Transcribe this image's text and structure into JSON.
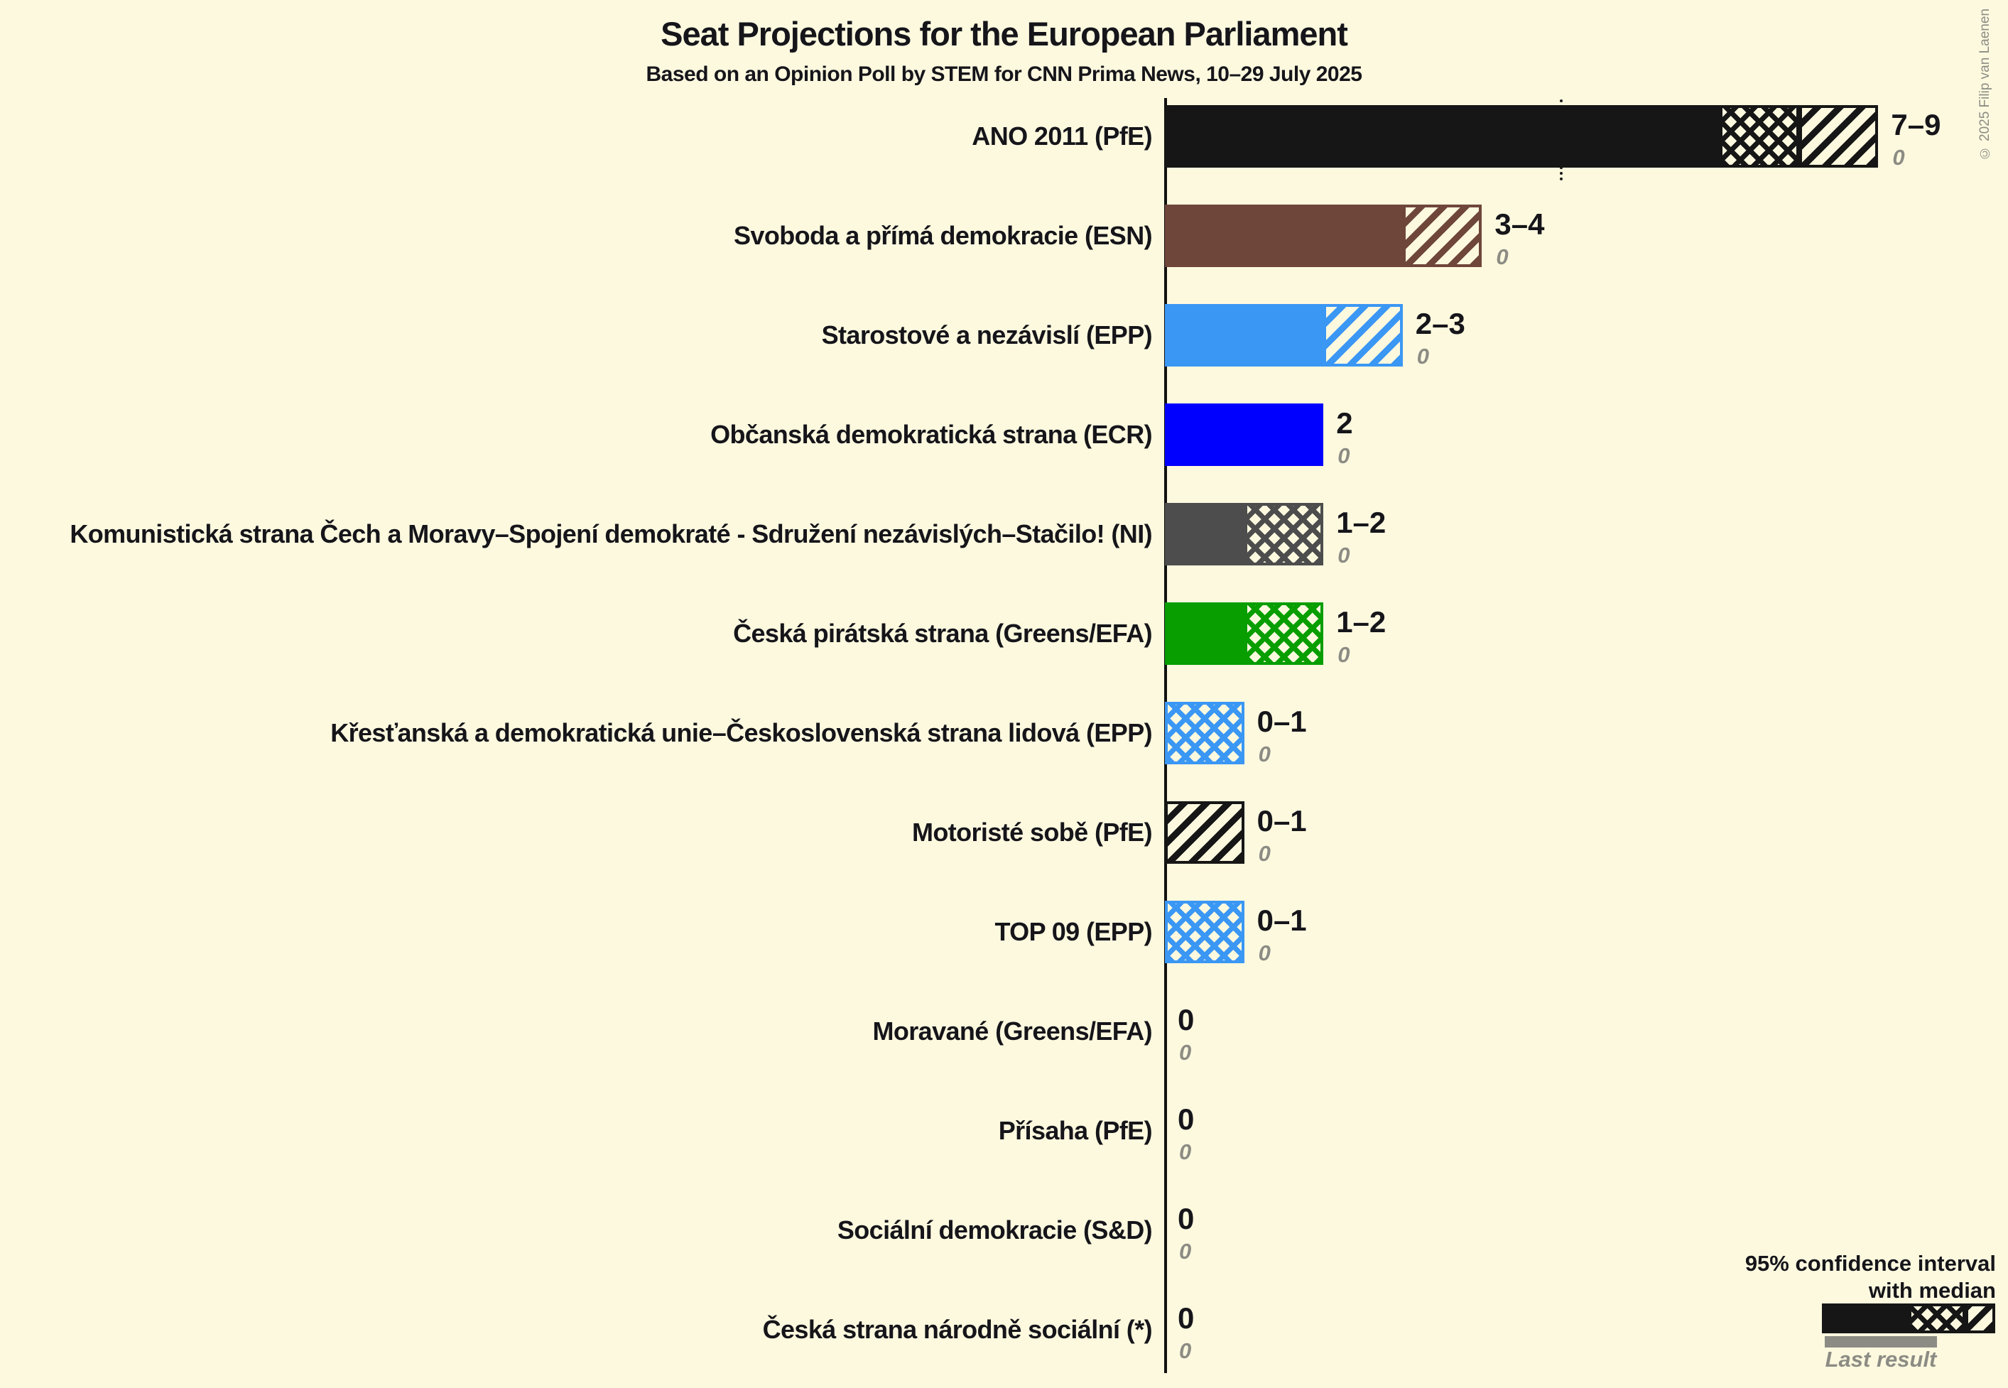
{
  "chart_data": {
    "type": "bar",
    "orientation": "horizontal",
    "title": "Seat Projections for the European Parliament",
    "subtitle": "Based on an Opinion Poll by STEM for CNN Prima News, 10–29 July 2025",
    "unit": "seats",
    "xlim": [
      0,
      10.6
    ],
    "gridlines": false,
    "threshold_line_at_seats": 5,
    "bar_semantics": "solid = lower bound of 95% CI, crosshatch = lower bound to median, diagonal hatch = median to upper bound",
    "parties": [
      {
        "label": "ANO 2011 (PfE)",
        "ci_low": 7,
        "median": 8,
        "ci_high": 9,
        "value_label": "7–9",
        "last_result_label": "0",
        "last_result": 0,
        "color": "#161616"
      },
      {
        "label": "Svoboda a přímá demokracie (ESN)",
        "ci_low": 3,
        "median": 3,
        "ci_high": 4,
        "value_label": "3–4",
        "last_result_label": "0",
        "last_result": 0,
        "color": "#6F463A"
      },
      {
        "label": "Starostové a nezávislí (EPP)",
        "ci_low": 2,
        "median": 2,
        "ci_high": 3,
        "value_label": "2–3",
        "last_result_label": "0",
        "last_result": 0,
        "color": "#3B97F4"
      },
      {
        "label": "Občanská demokratická strana (ECR)",
        "ci_low": 2,
        "median": 2,
        "ci_high": 2,
        "value_label": "2",
        "last_result_label": "0",
        "last_result": 0,
        "color": "#0000FE"
      },
      {
        "label": "Komunistická strana Čech a Moravy–Spojení demokraté - Sdružení nezávislých–Stačilo! (NI)",
        "ci_low": 1,
        "median": 2,
        "ci_high": 2,
        "value_label": "1–2",
        "last_result_label": "0",
        "last_result": 0,
        "color": "#4D4D4D"
      },
      {
        "label": "Česká pirátská strana (Greens/EFA)",
        "ci_low": 1,
        "median": 2,
        "ci_high": 2,
        "value_label": "1–2",
        "last_result_label": "0",
        "last_result": 0,
        "color": "#089E00"
      },
      {
        "label": "Křesťanská a demokratická unie–Československá strana lidová (EPP)",
        "ci_low": 0,
        "median": 1,
        "ci_high": 1,
        "value_label": "0–1",
        "last_result_label": "0",
        "last_result": 0,
        "color": "#3B97F4"
      },
      {
        "label": "Motoristé sobě (PfE)",
        "ci_low": 0,
        "median": 0,
        "ci_high": 1,
        "value_label": "0–1",
        "last_result_label": "0",
        "last_result": 0,
        "color": "#161616"
      },
      {
        "label": "TOP 09 (EPP)",
        "ci_low": 0,
        "median": 1,
        "ci_high": 1,
        "value_label": "0–1",
        "last_result_label": "0",
        "last_result": 0,
        "color": "#3B97F4"
      },
      {
        "label": "Moravané (Greens/EFA)",
        "ci_low": 0,
        "median": 0,
        "ci_high": 0,
        "value_label": "0",
        "last_result_label": "0",
        "last_result": 0,
        "color": "#161616"
      },
      {
        "label": "Přísaha (PfE)",
        "ci_low": 0,
        "median": 0,
        "ci_high": 0,
        "value_label": "0",
        "last_result_label": "0",
        "last_result": 0,
        "color": "#161616"
      },
      {
        "label": "Sociální demokracie (S&D)",
        "ci_low": 0,
        "median": 0,
        "ci_high": 0,
        "value_label": "0",
        "last_result_label": "0",
        "last_result": 0,
        "color": "#161616"
      },
      {
        "label": "Česká strana národně sociální (*)",
        "ci_low": 0,
        "median": 0,
        "ci_high": 0,
        "value_label": "0",
        "last_result_label": "0",
        "last_result": 0,
        "color": "#161616"
      }
    ]
  },
  "legend": {
    "ci_line1": "95% confidence interval",
    "ci_line2": "with median",
    "last_result_label": "Last result"
  },
  "copyright": "© 2025 Filip van Laenen",
  "colors": {
    "background": "#FDF9DF",
    "axis": "#111111",
    "legend_sample": "#161616",
    "last_result_gray": "#8C8C84"
  }
}
